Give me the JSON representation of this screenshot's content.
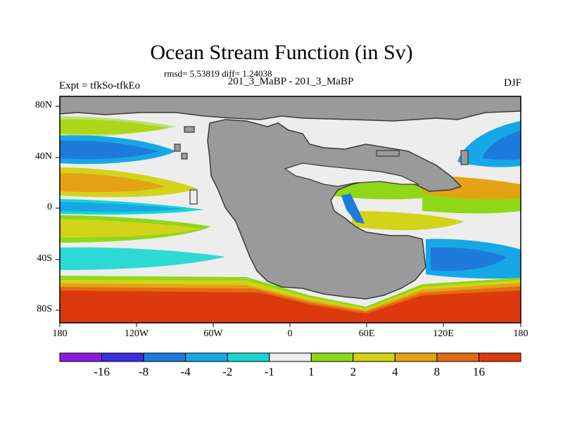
{
  "title": "Ocean Stream Function (in Sv)",
  "stats": "rmsd= 5.53819 diff= 1.24038",
  "subtitle": "201_3_MaBP - 201_3_MaBP",
  "left_label": "Expt = tfkSo-tfkEo",
  "right_label": "DJF",
  "map": {
    "lat_ticks": [
      "80N",
      "40N",
      "0",
      "40S",
      "80S"
    ],
    "lon_ticks": [
      "180",
      "120W",
      "60W",
      "0",
      "60E",
      "120E",
      "180"
    ],
    "land_color": "#9a9a9a",
    "coast_color": "#3a3a3a"
  },
  "colorbar": {
    "labels": [
      "-16",
      "-8",
      "-4",
      "-2",
      "-1",
      "1",
      "2",
      "4",
      "8",
      "16"
    ],
    "colors": [
      "#8c1be3",
      "#3c2ee0",
      "#1e7bdc",
      "#16a8e6",
      "#17d6d2",
      "#ededed",
      "#8ed818",
      "#d3d31a",
      "#e3a315",
      "#e36b14",
      "#dc3a0e"
    ]
  }
}
